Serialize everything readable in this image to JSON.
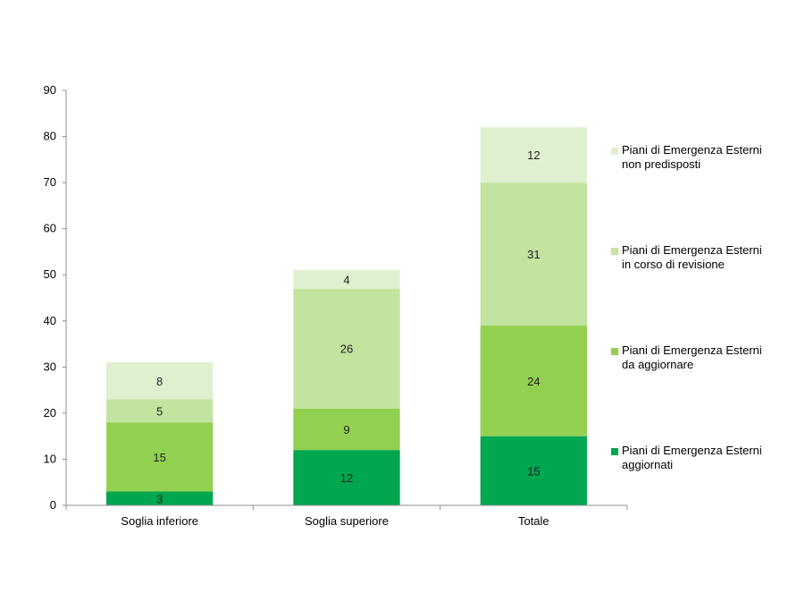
{
  "chart_data": {
    "type": "bar",
    "stacked": true,
    "categories": [
      "Soglia inferiore",
      "Soglia superiore",
      "Totale"
    ],
    "series": [
      {
        "name": "Piani di Emergenza Esterni\naggiornati",
        "values": [
          3,
          12,
          15
        ],
        "color": "#00a650"
      },
      {
        "name": "Piani di Emergenza Esterni\nda aggiornare",
        "values": [
          15,
          9,
          24
        ],
        "color": "#92d050"
      },
      {
        "name": "Piani di Emergenza Esterni\nin corso di revisione",
        "values": [
          5,
          26,
          31
        ],
        "color": "#c3e3a1"
      },
      {
        "name": "Piani di Emergenza Esterni\nnon predisposti",
        "values": [
          8,
          4,
          12
        ],
        "color": "#dff0cf"
      }
    ],
    "ylim": [
      0,
      90
    ],
    "yticks": [
      0,
      10,
      20,
      30,
      40,
      50,
      60,
      70,
      80,
      90
    ],
    "legend_position": "right",
    "grid": false
  }
}
